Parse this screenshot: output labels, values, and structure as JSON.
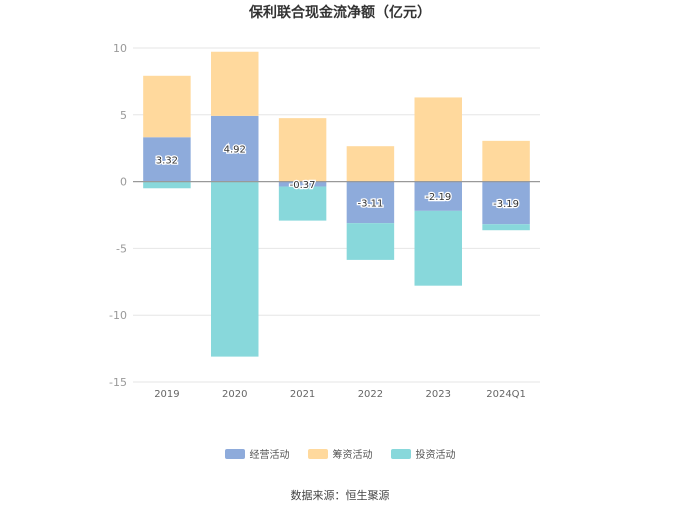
{
  "title": "保利联合现金流净额（亿元）",
  "source": "数据来源：恒生聚源",
  "chart_data": {
    "type": "bar",
    "stacked": true,
    "categories": [
      "2019",
      "2020",
      "2021",
      "2022",
      "2023",
      "2024Q1"
    ],
    "ylim": [
      -15,
      10
    ],
    "yticks": [
      10,
      5,
      0,
      -5,
      -10,
      -15
    ],
    "grid": true,
    "legend_position": "bottom",
    "series": [
      {
        "name": "经营活动",
        "color": "#8eabdb",
        "values": [
          3.32,
          4.92,
          -0.37,
          -3.11,
          -2.19,
          -3.19
        ],
        "labeled": true
      },
      {
        "name": "筹资活动",
        "color": "#ffd99d",
        "values": [
          4.6,
          4.8,
          4.75,
          2.65,
          6.3,
          3.05
        ],
        "labeled": false
      },
      {
        "name": "投资活动",
        "color": "#88d8db",
        "values": [
          -0.5,
          -13.1,
          -2.55,
          -2.75,
          -5.6,
          -0.45
        ],
        "labeled": false
      }
    ]
  }
}
